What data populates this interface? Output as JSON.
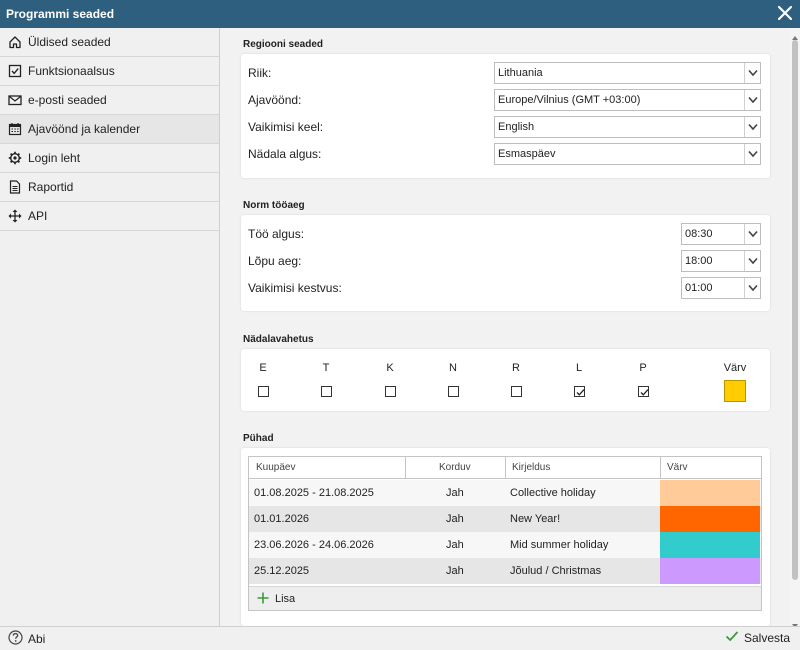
{
  "window": {
    "title": "Programmi seaded"
  },
  "sidebar": {
    "items": [
      {
        "label": "Üldised seaded",
        "icon": "home-icon"
      },
      {
        "label": "Funktsionaalsus",
        "icon": "checkbox-icon"
      },
      {
        "label": "e-posti seaded",
        "icon": "envelope-icon"
      },
      {
        "label": "Ajavöönd ja kalender",
        "icon": "calendar-icon",
        "active": true
      },
      {
        "label": "Login leht",
        "icon": "gear-icon"
      },
      {
        "label": "Raportid",
        "icon": "document-icon"
      },
      {
        "label": "API",
        "icon": "move-arrows-icon"
      }
    ]
  },
  "region": {
    "title": "Regiooni seaded",
    "country": {
      "label": "Riik:",
      "value": "Lithuania"
    },
    "timezone": {
      "label": "Ajavöönd:",
      "value": "Europe/Vilnius (GMT +03:00)"
    },
    "language": {
      "label": "Vaikimisi keel:",
      "value": "English"
    },
    "week_start": {
      "label": "Nädala algus:",
      "value": "Esmaspäev"
    }
  },
  "worktime": {
    "title": "Norm tööaeg",
    "start": {
      "label": "Töö algus:",
      "value": "08:30"
    },
    "end": {
      "label": "Lõpu aeg:",
      "value": "18:00"
    },
    "duration": {
      "label": "Vaikimisi kestvus:",
      "value": "01:00"
    }
  },
  "weekend": {
    "title": "Nädalavahetus",
    "days": [
      {
        "label": "E",
        "checked": false
      },
      {
        "label": "T",
        "checked": false
      },
      {
        "label": "K",
        "checked": false
      },
      {
        "label": "N",
        "checked": false
      },
      {
        "label": "R",
        "checked": false
      },
      {
        "label": "L",
        "checked": true
      },
      {
        "label": "P",
        "checked": true
      }
    ],
    "color_label": "Värv",
    "color": "#ffcc00"
  },
  "holidays": {
    "title": "Pühad",
    "columns": {
      "date": "Kuupäev",
      "repeat": "Korduv",
      "description": "Kirjeldus",
      "color": "Värv"
    },
    "rows": [
      {
        "date": "01.08.2025 - 21.08.2025",
        "repeat": "Jah",
        "description": "Collective holiday",
        "color": "#ffcc99"
      },
      {
        "date": "01.01.2026",
        "repeat": "Jah",
        "description": "New Year!",
        "color": "#ff6600"
      },
      {
        "date": "23.06.2026 - 24.06.2026",
        "repeat": "Jah",
        "description": "Mid summer holiday",
        "color": "#33cccc"
      },
      {
        "date": "25.12.2025",
        "repeat": "Jah",
        "description": "Jõulud / Christmas",
        "color": "#cc99ff"
      }
    ],
    "add_label": "Lisa"
  },
  "footer": {
    "help_label": "Abi",
    "save_label": "Salvesta"
  }
}
